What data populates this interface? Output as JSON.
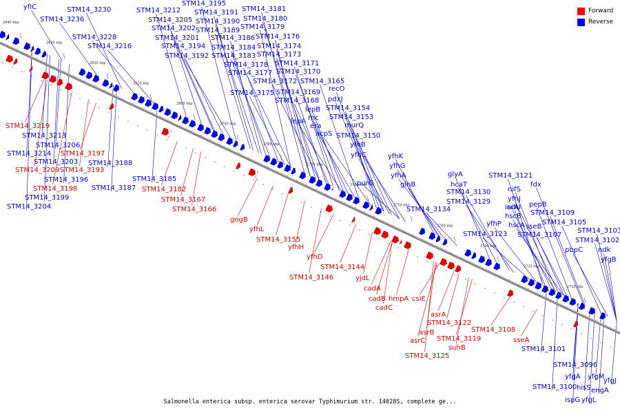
{
  "legend": [
    {
      "label": "Forward",
      "color": "#ff0000"
    },
    {
      "label": "Reverse",
      "color": "#0000ff"
    }
  ],
  "colors": {
    "forward": "#e00000",
    "reverse": "#0000e0",
    "backbone": "#8a8a8a"
  },
  "caption": "Salmonella enterica subsp. enterica serovar Typhimurium str. 14028S, complete ge...",
  "ticks": [
    "2840 kbp",
    "2830 kbp",
    "2820 kbp",
    "2810 kbp",
    "2800 kbp",
    "2790 kbp",
    "2780 kbp",
    "2770 kbp",
    "2760 kbp",
    "2750 kbp",
    "2740 kbp",
    "2730 kbp",
    "2720 kbp",
    "2710 kbp"
  ],
  "reverse_labels": [
    "yfiC",
    "STM14_3230",
    "STM14_3236",
    "STM14_3228",
    "STM14_3216",
    "STM14_3212",
    "STM14_3195",
    "STM14_3191",
    "STM14_3190",
    "STM14_3205",
    "STM14_3202",
    "STM14_3189",
    "STM14_3201",
    "STM14_3194",
    "STM14_3192",
    "STM14_3186",
    "STM14_3184",
    "STM14_3183",
    "STM14_3181",
    "STM14_3180",
    "STM14_3179",
    "STM14_3176",
    "STM14_3174",
    "STM14_3173",
    "STM14_3178",
    "STM14_3177",
    "STM14_3175",
    "STM14_3171",
    "STM14_3170",
    "STM14_3172",
    "STM14_3169",
    "STM14_3168",
    "STM14_3165",
    "recO",
    "pdxJ",
    "lepB",
    "rnc",
    "era",
    "lepA",
    "acpS",
    "STM14_3154",
    "STM14_3153",
    "murQ",
    "STM14_3150",
    "yfhB",
    "yfhC",
    "purG",
    "yfhK",
    "yfhG",
    "yfhA",
    "glnB",
    "glyA",
    "hcaT",
    "STM14_3130",
    "STM14_3129",
    "STM14_3134",
    "STM14_3121",
    "nifS",
    "yfhJ",
    "fdx",
    "nifU",
    "pepB",
    "iscA",
    "hscB",
    "hscA",
    "sseB",
    "STM14_3109",
    "STM14_3105",
    "yfhP",
    "STM14_3123",
    "STM14_3107",
    "pbpC",
    "STM14_3103",
    "STM14_3102",
    "ndk",
    "yfgB",
    "STM14_3213",
    "STM14_3206",
    "STM14_3214",
    "STM14_3203",
    "STM14_3188",
    "STM14_3196",
    "STM14_3185",
    "STM14_3187",
    "STM14_3199",
    "STM14_3204",
    "STM14_3101",
    "STM14_3096",
    "yfgA",
    "yfgM",
    "yfgJ",
    "STM14_3100",
    "hisS",
    "engA",
    "ispG",
    "yfgL"
  ],
  "forward_labels": [
    "STM14_3219",
    "STM14_3197",
    "STM14_3209",
    "STM14_3193",
    "STM14_3198",
    "STM14_3182",
    "STM14_3167",
    "STM14_3166",
    "gogB",
    "yfhL",
    "STM14_3155",
    "yfhH",
    "yfhD",
    "STM14_3144",
    "STM14_3146",
    "yjdL",
    "cadA",
    "cadB",
    "hmpA",
    "cadC",
    "csiE",
    "asrA",
    "STM14_3122",
    "asrB",
    "asrC",
    "STM14_3119",
    "suhB",
    "STM14_3125",
    "STM14_3108",
    "sseA"
  ]
}
